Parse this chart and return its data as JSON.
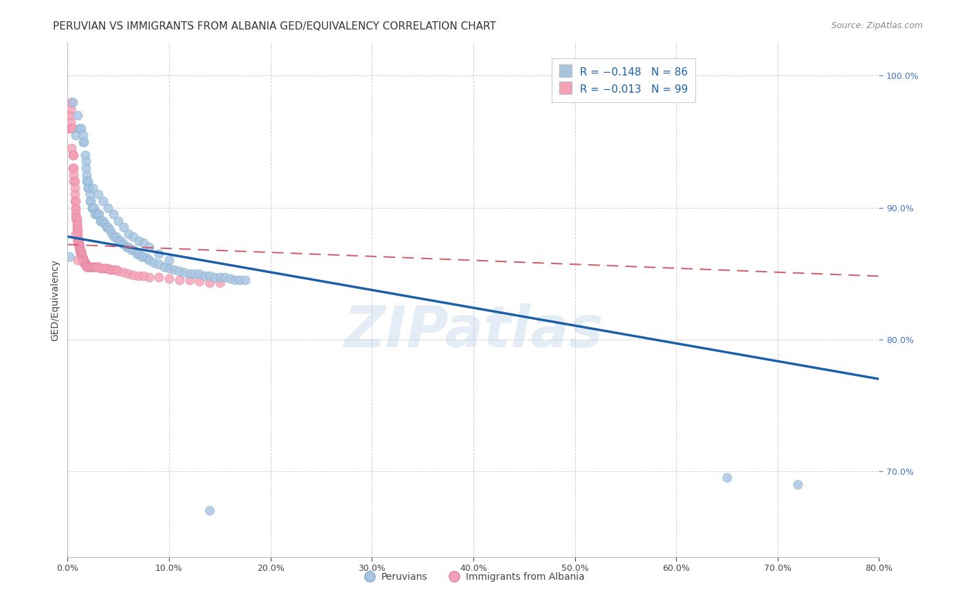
{
  "title": "PERUVIAN VS IMMIGRANTS FROM ALBANIA GED/EQUIVALENCY CORRELATION CHART",
  "source": "Source: ZipAtlas.com",
  "ylabel": "GED/Equivalency",
  "xlim": [
    0.0,
    0.8
  ],
  "ylim": [
    0.635,
    1.025
  ],
  "blue_color": "#a8c4e0",
  "blue_edge_color": "#7aafd0",
  "pink_color": "#f4a0b5",
  "pink_edge_color": "#e080a0",
  "trendline_blue": "#1a5fa8",
  "trendline_pink": "#d06070",
  "legend_text_color": "#1a5fa8",
  "peruvians_label": "Peruvians",
  "albania_label": "Immigrants from Albania",
  "blue_x": [
    0.002,
    0.005,
    0.008,
    0.01,
    0.012,
    0.013,
    0.015,
    0.015,
    0.016,
    0.017,
    0.018,
    0.018,
    0.019,
    0.019,
    0.02,
    0.021,
    0.022,
    0.022,
    0.023,
    0.024,
    0.025,
    0.026,
    0.027,
    0.028,
    0.03,
    0.031,
    0.032,
    0.033,
    0.035,
    0.036,
    0.038,
    0.04,
    0.042,
    0.044,
    0.046,
    0.048,
    0.05,
    0.052,
    0.055,
    0.058,
    0.06,
    0.063,
    0.065,
    0.068,
    0.07,
    0.073,
    0.075,
    0.078,
    0.08,
    0.085,
    0.09,
    0.095,
    0.1,
    0.105,
    0.11,
    0.115,
    0.12,
    0.125,
    0.13,
    0.135,
    0.14,
    0.145,
    0.15,
    0.155,
    0.16,
    0.165,
    0.17,
    0.175,
    0.02,
    0.025,
    0.03,
    0.035,
    0.04,
    0.045,
    0.05,
    0.055,
    0.06,
    0.065,
    0.07,
    0.075,
    0.08,
    0.09,
    0.1,
    0.65,
    0.72,
    0.14
  ],
  "blue_y": [
    0.863,
    0.98,
    0.955,
    0.97,
    0.96,
    0.96,
    0.955,
    0.95,
    0.95,
    0.94,
    0.935,
    0.93,
    0.925,
    0.92,
    0.915,
    0.915,
    0.91,
    0.905,
    0.905,
    0.9,
    0.9,
    0.9,
    0.895,
    0.895,
    0.895,
    0.895,
    0.89,
    0.89,
    0.89,
    0.888,
    0.885,
    0.885,
    0.883,
    0.88,
    0.878,
    0.878,
    0.875,
    0.875,
    0.872,
    0.87,
    0.87,
    0.868,
    0.868,
    0.865,
    0.865,
    0.863,
    0.863,
    0.862,
    0.86,
    0.858,
    0.857,
    0.855,
    0.854,
    0.853,
    0.852,
    0.851,
    0.85,
    0.85,
    0.85,
    0.848,
    0.848,
    0.847,
    0.847,
    0.847,
    0.846,
    0.845,
    0.845,
    0.845,
    0.92,
    0.915,
    0.91,
    0.905,
    0.9,
    0.895,
    0.89,
    0.885,
    0.88,
    0.878,
    0.875,
    0.873,
    0.87,
    0.865,
    0.86,
    0.695,
    0.69,
    0.67
  ],
  "pink_x": [
    0.001,
    0.002,
    0.003,
    0.003,
    0.004,
    0.004,
    0.005,
    0.005,
    0.006,
    0.006,
    0.006,
    0.007,
    0.007,
    0.007,
    0.007,
    0.008,
    0.008,
    0.008,
    0.008,
    0.008,
    0.009,
    0.009,
    0.009,
    0.009,
    0.009,
    0.01,
    0.01,
    0.01,
    0.01,
    0.01,
    0.01,
    0.01,
    0.011,
    0.011,
    0.011,
    0.011,
    0.012,
    0.012,
    0.012,
    0.012,
    0.013,
    0.013,
    0.013,
    0.013,
    0.014,
    0.014,
    0.014,
    0.015,
    0.015,
    0.015,
    0.016,
    0.016,
    0.016,
    0.017,
    0.017,
    0.018,
    0.018,
    0.019,
    0.019,
    0.02,
    0.02,
    0.021,
    0.022,
    0.023,
    0.024,
    0.025,
    0.026,
    0.027,
    0.028,
    0.029,
    0.03,
    0.032,
    0.034,
    0.036,
    0.038,
    0.04,
    0.042,
    0.044,
    0.046,
    0.048,
    0.05,
    0.055,
    0.06,
    0.065,
    0.07,
    0.075,
    0.08,
    0.09,
    0.1,
    0.11,
    0.12,
    0.13,
    0.14,
    0.15,
    0.004,
    0.005,
    0.006,
    0.008,
    0.01
  ],
  "pink_y": [
    0.96,
    0.97,
    0.975,
    0.965,
    0.96,
    0.945,
    0.94,
    0.93,
    0.93,
    0.925,
    0.92,
    0.92,
    0.915,
    0.91,
    0.905,
    0.905,
    0.9,
    0.898,
    0.895,
    0.892,
    0.892,
    0.89,
    0.888,
    0.886,
    0.884,
    0.884,
    0.882,
    0.88,
    0.878,
    0.876,
    0.875,
    0.874,
    0.874,
    0.872,
    0.871,
    0.87,
    0.87,
    0.869,
    0.868,
    0.867,
    0.867,
    0.866,
    0.865,
    0.864,
    0.864,
    0.863,
    0.862,
    0.862,
    0.861,
    0.86,
    0.86,
    0.859,
    0.858,
    0.858,
    0.857,
    0.857,
    0.856,
    0.856,
    0.855,
    0.855,
    0.855,
    0.855,
    0.855,
    0.855,
    0.855,
    0.855,
    0.855,
    0.855,
    0.855,
    0.855,
    0.855,
    0.854,
    0.854,
    0.854,
    0.854,
    0.854,
    0.853,
    0.853,
    0.853,
    0.853,
    0.852,
    0.851,
    0.85,
    0.849,
    0.848,
    0.848,
    0.847,
    0.847,
    0.846,
    0.845,
    0.845,
    0.844,
    0.843,
    0.843,
    0.98,
    0.96,
    0.94,
    0.88,
    0.86
  ],
  "blue_trend_x0": 0.0,
  "blue_trend_x1": 0.8,
  "blue_trend_y0": 0.878,
  "blue_trend_y1": 0.77,
  "pink_trend_x0": 0.0,
  "pink_trend_x1": 0.8,
  "pink_trend_y0": 0.872,
  "pink_trend_y1": 0.848,
  "watermark": "ZIPatlas",
  "title_fontsize": 11,
  "source_fontsize": 9,
  "axis_label_fontsize": 10,
  "tick_fontsize": 9,
  "legend_fontsize": 11,
  "y_ticks": [
    0.7,
    0.8,
    0.9,
    1.0
  ],
  "x_ticks": [
    0.0,
    0.1,
    0.2,
    0.3,
    0.4,
    0.5,
    0.6,
    0.7,
    0.8
  ]
}
